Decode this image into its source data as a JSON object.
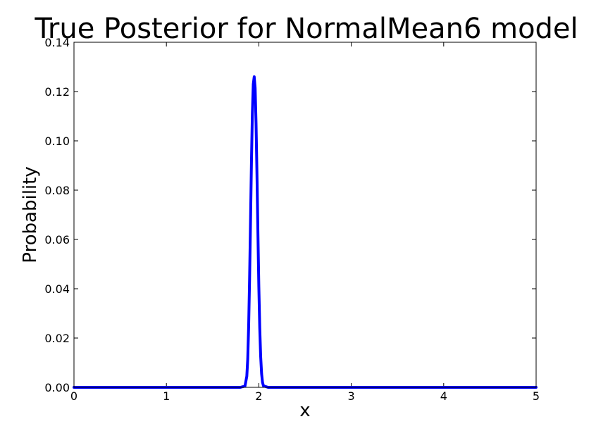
{
  "chart_data": {
    "type": "line",
    "title": "True Posterior for NormalMean6 model",
    "xlabel": "x",
    "ylabel": "Probability",
    "xlim": [
      0,
      5
    ],
    "ylim": [
      0,
      0.14
    ],
    "xticks": [
      "0",
      "1",
      "2",
      "3",
      "4",
      "5"
    ],
    "yticks": [
      "0.00",
      "0.02",
      "0.04",
      "0.06",
      "0.08",
      "0.10",
      "0.12",
      "0.14"
    ],
    "grid": false,
    "series": [
      {
        "color": "#0000ff",
        "x": [
          0,
          1.5,
          1.8,
          1.85,
          1.87,
          1.88,
          1.89,
          1.9,
          1.91,
          1.92,
          1.93,
          1.94,
          1.95,
          1.96,
          1.97,
          1.98,
          1.99,
          2.0,
          2.01,
          2.02,
          2.03,
          2.04,
          2.05,
          2.1,
          2.5,
          5
        ],
        "y": [
          0,
          0,
          0,
          0.0005,
          0.0045,
          0.0115,
          0.025,
          0.044,
          0.067,
          0.091,
          0.111,
          0.123,
          0.126,
          0.1215,
          0.107,
          0.086,
          0.063,
          0.041,
          0.024,
          0.0125,
          0.0055,
          0.002,
          0.0006,
          0,
          0,
          0
        ]
      }
    ]
  }
}
